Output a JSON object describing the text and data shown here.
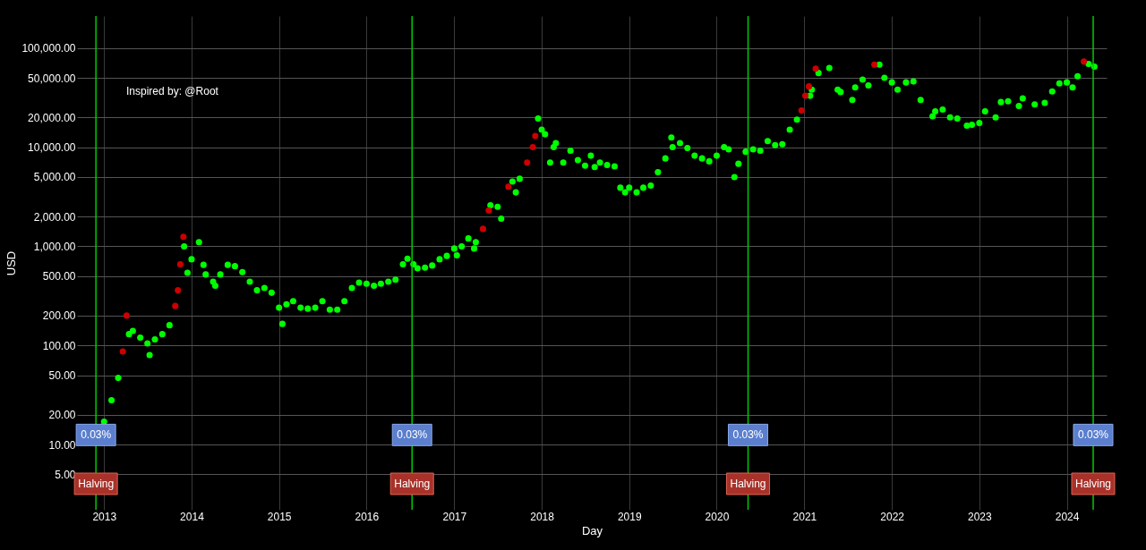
{
  "chart_data": {
    "type": "scatter",
    "xlabel": "Day",
    "ylabel": "USD",
    "log": "y",
    "grid": true,
    "marker": "circle",
    "xlim": [
      "2012-09-10",
      "2024-06-15"
    ],
    "xticks": [
      "2013",
      "2014",
      "2015",
      "2016",
      "2017",
      "2018",
      "2019",
      "2020",
      "2021",
      "2022",
      "2023",
      "2024"
    ],
    "ylim": [
      2.2,
      210000
    ],
    "yticks": [
      {
        "value": 5,
        "label": "5.00"
      },
      {
        "value": 10,
        "label": "10.00"
      },
      {
        "value": 20,
        "label": "20.00"
      },
      {
        "value": 50,
        "label": "50.00"
      },
      {
        "value": 100,
        "label": "100.00"
      },
      {
        "value": 200,
        "label": "200.00"
      },
      {
        "value": 500,
        "label": "500.00"
      },
      {
        "value": 1000,
        "label": "1,000.00"
      },
      {
        "value": 2000,
        "label": "2,000.00"
      },
      {
        "value": 5000,
        "label": "5,000.00"
      },
      {
        "value": 10000,
        "label": "10,000.00"
      },
      {
        "value": 20000,
        "label": "20,000.00"
      },
      {
        "value": 50000,
        "label": "50,000.00"
      },
      {
        "value": 100000,
        "label": "100,000.00"
      }
    ],
    "series": [
      {
        "color": "#00ff00",
        "x": [
          "2013-01-01",
          "2013-02-01",
          "2013-03-01",
          "2013-04-15",
          "2013-05-01",
          "2013-06-01",
          "2013-07-01",
          "2013-07-10",
          "2013-08-01",
          "2013-09-01",
          "2013-10-01",
          "2013-12-01",
          "2013-12-15",
          "2014-01-01",
          "2014-02-01",
          "2014-02-20",
          "2014-03-01",
          "2014-04-01",
          "2014-04-10",
          "2014-05-01",
          "2014-06-01",
          "2014-07-01",
          "2014-08-01",
          "2014-09-01",
          "2014-10-01",
          "2014-11-01",
          "2014-12-01",
          "2015-01-01",
          "2015-01-15",
          "2015-02-01",
          "2015-03-01",
          "2015-04-01",
          "2015-05-01",
          "2015-06-01",
          "2015-07-01",
          "2015-08-01",
          "2015-09-01",
          "2015-10-01",
          "2015-11-01",
          "2015-12-01",
          "2016-01-01",
          "2016-02-01",
          "2016-03-01",
          "2016-04-01",
          "2016-05-01",
          "2016-06-01",
          "2016-06-20",
          "2016-07-15",
          "2016-08-01",
          "2016-09-01",
          "2016-10-01",
          "2016-11-01",
          "2016-12-01",
          "2017-01-01",
          "2017-01-12",
          "2017-02-01",
          "2017-03-01",
          "2017-03-25",
          "2017-04-01",
          "2017-06-01",
          "2017-07-01",
          "2017-07-16",
          "2017-09-01",
          "2017-09-15",
          "2017-10-01",
          "2017-12-17",
          "2018-01-01",
          "2018-01-15",
          "2018-02-05",
          "2018-02-20",
          "2018-03-01",
          "2018-04-01",
          "2018-05-01",
          "2018-06-01",
          "2018-07-01",
          "2018-07-25",
          "2018-08-10",
          "2018-09-01",
          "2018-10-01",
          "2018-11-01",
          "2018-11-25",
          "2018-12-15",
          "2019-01-01",
          "2019-02-01",
          "2019-03-01",
          "2019-04-01",
          "2019-05-01",
          "2019-06-01",
          "2019-06-26",
          "2019-07-01",
          "2019-08-01",
          "2019-09-01",
          "2019-10-01",
          "2019-11-01",
          "2019-12-01",
          "2020-01-01",
          "2020-02-01",
          "2020-02-20",
          "2020-03-15",
          "2020-04-01",
          "2020-05-01",
          "2020-06-01",
          "2020-07-01",
          "2020-08-01",
          "2020-09-01",
          "2020-10-01",
          "2020-11-01",
          "2020-12-01",
          "2021-01-25",
          "2021-02-01",
          "2021-03-01",
          "2021-04-15",
          "2021-05-20",
          "2021-06-01",
          "2021-07-20",
          "2021-08-01",
          "2021-09-01",
          "2021-09-25",
          "2021-11-10",
          "2021-12-01",
          "2022-01-01",
          "2022-01-25",
          "2022-03-01",
          "2022-04-01",
          "2022-05-01",
          "2022-06-20",
          "2022-07-01",
          "2022-08-01",
          "2022-09-01",
          "2022-10-01",
          "2022-11-10",
          "2022-12-01",
          "2023-01-01",
          "2023-01-25",
          "2023-03-10",
          "2023-04-01",
          "2023-05-01",
          "2023-06-15",
          "2023-07-01",
          "2023-08-20",
          "2023-10-01",
          "2023-11-01",
          "2023-12-01",
          "2024-01-01",
          "2024-01-25",
          "2024-02-15",
          "2024-04-01",
          "2024-04-25"
        ],
        "values": [
          17,
          28,
          47,
          130,
          140,
          120,
          105,
          80,
          115,
          130,
          160,
          1000,
          540,
          740,
          1100,
          650,
          520,
          440,
          400,
          520,
          650,
          630,
          550,
          440,
          360,
          380,
          340,
          240,
          165,
          260,
          280,
          240,
          235,
          240,
          280,
          230,
          230,
          280,
          380,
          430,
          420,
          400,
          420,
          440,
          460,
          660,
          750,
          660,
          600,
          610,
          640,
          740,
          800,
          950,
          810,
          1000,
          1200,
          950,
          1100,
          2600,
          2500,
          1900,
          4500,
          3500,
          4800,
          19500,
          15000,
          13500,
          7000,
          10000,
          11000,
          7000,
          9200,
          7400,
          6500,
          8200,
          6300,
          7000,
          6600,
          6400,
          3900,
          3500,
          3900,
          3500,
          3900,
          4100,
          5600,
          7700,
          12500,
          10000,
          11000,
          9800,
          8200,
          7700,
          7200,
          8200,
          10000,
          9500,
          5000,
          6800,
          9000,
          9500,
          9200,
          11500,
          10500,
          10700,
          15000,
          19000,
          33000,
          38000,
          56000,
          63000,
          38000,
          36000,
          30000,
          40000,
          48000,
          42000,
          68000,
          50000,
          45000,
          38000,
          45000,
          46000,
          30000,
          20500,
          23000,
          24000,
          20000,
          19500,
          16500,
          16800,
          17500,
          23000,
          20000,
          28500,
          29000,
          26000,
          31000,
          27000,
          28000,
          36500,
          44000,
          45000,
          40000,
          52000,
          69000,
          65000
        ]
      },
      {
        "color": "#cc0000",
        "x": [
          "2013-03-20",
          "2013-04-05",
          "2013-10-25",
          "2013-11-05",
          "2013-11-15",
          "2013-11-28",
          "2017-05-01",
          "2017-05-25",
          "2017-08-15",
          "2017-11-01",
          "2017-11-25",
          "2017-12-05",
          "2020-12-20",
          "2021-01-05",
          "2021-01-20",
          "2021-02-17",
          "2021-10-20",
          "2024-03-12"
        ],
        "values": [
          87,
          200,
          250,
          360,
          660,
          1250,
          1500,
          2300,
          4000,
          7000,
          10000,
          13000,
          23500,
          33000,
          41000,
          62000,
          68000,
          73000
        ]
      }
    ],
    "ref_lines": [
      {
        "axis": "x",
        "value": "2012-11-28",
        "label": "Halving",
        "color": "#00cc00"
      },
      {
        "axis": "x",
        "value": "2016-07-09",
        "label": "Halving",
        "color": "#00cc00"
      },
      {
        "axis": "x",
        "value": "2020-05-11",
        "label": "Halving",
        "color": "#00cc00"
      },
      {
        "axis": "x",
        "value": "2024-04-20",
        "label": "Halving",
        "color": "#00cc00"
      }
    ],
    "annotations": [
      {
        "text": "0.03%",
        "x": "2012-11-28",
        "y": 12.5
      },
      {
        "text": "0.03%",
        "x": "2016-07-09",
        "y": 12.5
      },
      {
        "text": "0.03%",
        "x": "2020-05-11",
        "y": 12.5
      },
      {
        "text": "0.03%",
        "x": "2024-04-20",
        "y": 12.5
      },
      "Inspired by: @Root"
    ]
  }
}
